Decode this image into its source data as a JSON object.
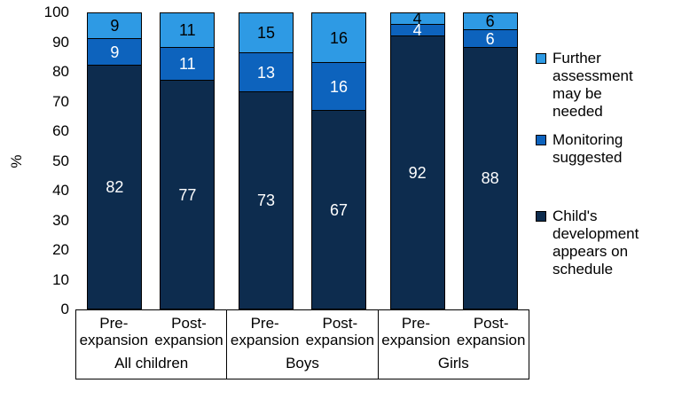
{
  "chart_data": {
    "type": "bar",
    "subtype": "stacked-100",
    "title": "",
    "ylabel": "%",
    "ylim": [
      0,
      100
    ],
    "yticks": [
      0,
      10,
      20,
      30,
      40,
      50,
      60,
      70,
      80,
      90,
      100
    ],
    "grid": false,
    "bar_categories": [
      "Pre-expansion",
      "Post-expansion"
    ],
    "groups": [
      {
        "label": "All children",
        "bars": [
          {
            "category": "Pre-expansion",
            "on_schedule": 82,
            "monitoring": 9,
            "further": 9
          },
          {
            "category": "Post-expansion",
            "on_schedule": 77,
            "monitoring": 11,
            "further": 11
          }
        ]
      },
      {
        "label": "Boys",
        "bars": [
          {
            "category": "Pre-expansion",
            "on_schedule": 73,
            "monitoring": 13,
            "further": 15
          },
          {
            "category": "Post-expansion",
            "on_schedule": 67,
            "monitoring": 16,
            "further": 16
          }
        ]
      },
      {
        "label": "Girls",
        "bars": [
          {
            "category": "Pre-expansion",
            "on_schedule": 92,
            "monitoring": 4,
            "further": 4
          },
          {
            "category": "Post-expansion",
            "on_schedule": 88,
            "monitoring": 6,
            "further": 6
          }
        ]
      }
    ],
    "series": [
      {
        "key": "on_schedule",
        "name": "Child's development appears on schedule",
        "color": "#0d2c4e",
        "label_color": "#ffffff"
      },
      {
        "key": "monitoring",
        "name": "Monitoring suggested",
        "color": "#0d63bd",
        "label_color": "#ffffff"
      },
      {
        "key": "further",
        "name": "Further assessment may be needed",
        "color": "#2e9ae4",
        "label_color": "#000000"
      }
    ],
    "legend": {
      "position": "right",
      "order": [
        "further",
        "monitoring",
        "on_schedule"
      ]
    }
  }
}
